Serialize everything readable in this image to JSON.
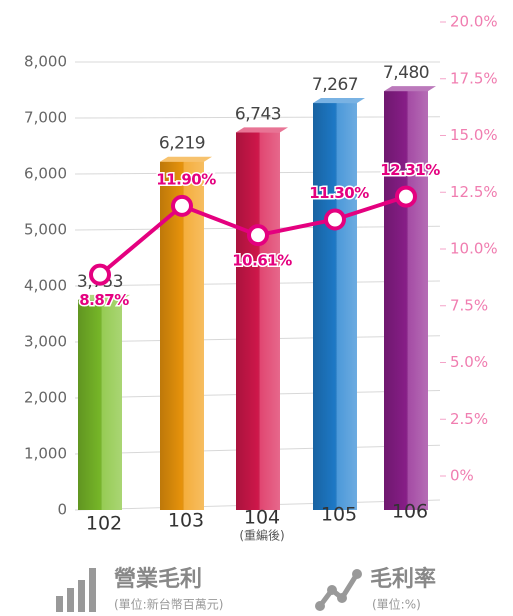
{
  "chart_data": {
    "type": "bar",
    "categories": [
      "102",
      "103",
      "104",
      "105",
      "106"
    ],
    "category_notes": [
      null,
      null,
      "(重編後)",
      null,
      null
    ],
    "series": [
      {
        "name": "營業毛利",
        "unit_label": "(單位:新台幣百萬元)",
        "type": "bar",
        "colors": [
          "#7cbf2a",
          "#f29a0c",
          "#d9184e",
          "#1f7fd0",
          "#8e1f8e"
        ],
        "values": [
          3753,
          6219,
          6743,
          7267,
          7480
        ],
        "value_labels": [
          "3,753",
          "6,219",
          "6,743",
          "7,267",
          "7,480"
        ]
      },
      {
        "name": "毛利率",
        "unit_label": "(單位:%)",
        "type": "line",
        "axis": "y2",
        "color": "#e4007f",
        "values": [
          8.87,
          11.9,
          10.61,
          11.3,
          12.31
        ],
        "value_labels": [
          "8.87%",
          "11.90%",
          "10.61%",
          "11.30%",
          "12.31%"
        ]
      }
    ],
    "ylim": [
      0,
      8000
    ],
    "yticks": [
      0,
      {
        "value": 1000,
        "label": "1,000"
      },
      {
        "value": 2000,
        "label": "2,000"
      },
      {
        "value": 3000,
        "label": "3,000"
      },
      {
        "value": 4000,
        "label": "4,000"
      },
      {
        "value": 5000,
        "label": "5,000"
      },
      {
        "value": 6000,
        "label": "6,000"
      },
      {
        "value": 7000,
        "label": "7,000"
      },
      {
        "value": 8000,
        "label": "8,000"
      }
    ],
    "y2lim": [
      0,
      20
    ],
    "y2ticks": [
      {
        "value": 0,
        "label": "0%"
      },
      {
        "value": 2.5,
        "label": "2.5%"
      },
      {
        "value": 5,
        "label": "5.0%"
      },
      {
        "value": 7.5,
        "label": "7.5%"
      },
      {
        "value": 10,
        "label": "10.0%"
      },
      {
        "value": 12.5,
        "label": "12.5%"
      },
      {
        "value": 15,
        "label": "15.0%"
      },
      {
        "value": 17.5,
        "label": "17.5%"
      },
      {
        "value": 20,
        "label": "20.0%"
      }
    ],
    "grid": true
  }
}
